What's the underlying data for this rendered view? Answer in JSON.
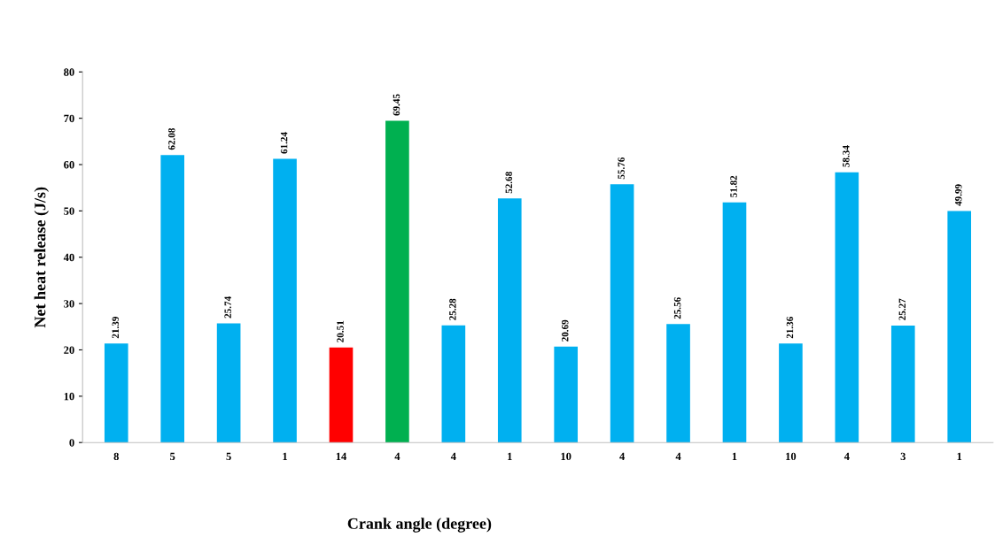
{
  "chart_data": {
    "type": "bar",
    "xlabel": "Crank angle (degree)",
    "ylabel": "Net heat release (J/s)",
    "categories": [
      "8",
      "5",
      "5",
      "1",
      "14",
      "4",
      "4",
      "1",
      "10",
      "4",
      "4",
      "1",
      "10",
      "4",
      "3",
      "1"
    ],
    "values": [
      21.39,
      62.08,
      25.74,
      61.24,
      20.51,
      69.45,
      25.28,
      52.68,
      20.69,
      55.76,
      25.56,
      51.82,
      21.36,
      58.34,
      25.27,
      49.99
    ],
    "colors": [
      "#00b0f0",
      "#00b0f0",
      "#00b0f0",
      "#00b0f0",
      "#ff0000",
      "#00b050",
      "#00b0f0",
      "#00b0f0",
      "#00b0f0",
      "#00b0f0",
      "#00b0f0",
      "#00b0f0",
      "#00b0f0",
      "#00b0f0",
      "#00b0f0",
      "#00b0f0"
    ],
    "ylim": [
      0,
      80
    ],
    "yticks": [
      0,
      10,
      20,
      30,
      40,
      50,
      60,
      70,
      80
    ],
    "data_labels": true,
    "grid": false,
    "legend": false
  }
}
